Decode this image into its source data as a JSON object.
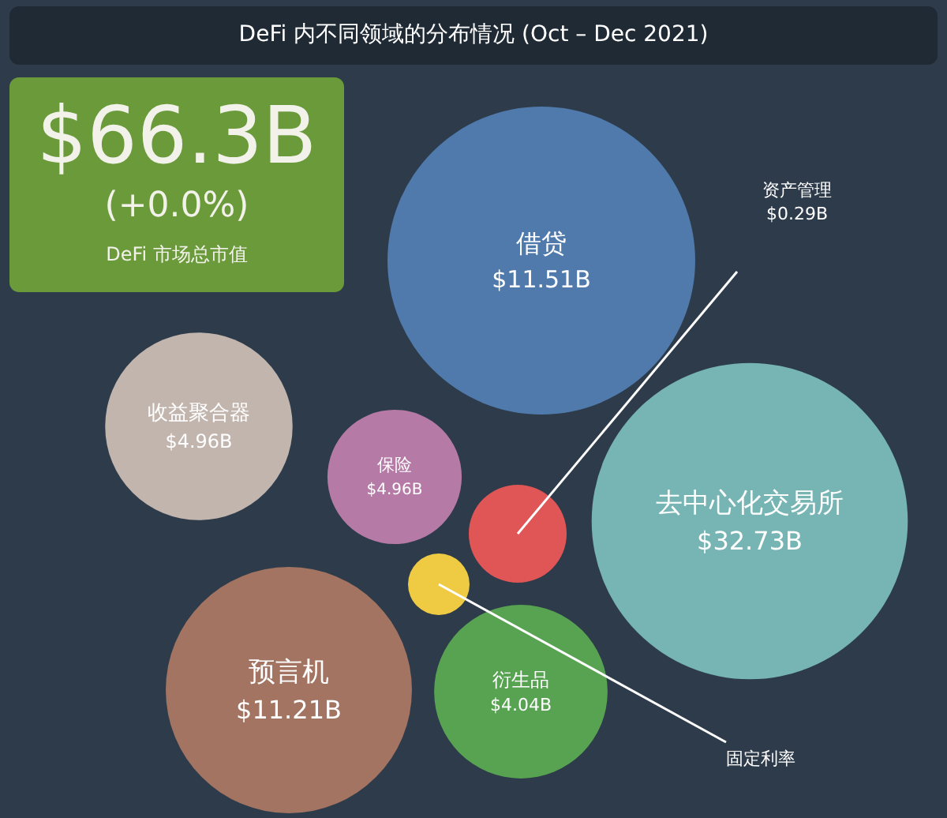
{
  "chart_data": {
    "type": "other",
    "title": "DeFi 内不同领域的分布情况 (Oct – Dec 2021)",
    "categories": [
      "借贷",
      "去中心化交易所",
      "收益聚合器",
      "保险",
      "资产管理",
      "固定利率",
      "预言机",
      "衍生品"
    ],
    "values": [
      11.51,
      32.73,
      4.96,
      4.96,
      0.29,
      null,
      11.21,
      4.04
    ],
    "value_labels": [
      "$11.51B",
      "$32.73B",
      "$4.96B",
      "$4.96B",
      "$0.29B",
      null,
      "$11.21B",
      "$4.04B"
    ],
    "colors": [
      "#4f7aab",
      "#76b5b3",
      "#c2b5ae",
      "#b57aa6",
      "#e05556",
      "#eecb42",
      "#a27461",
      "#58a352"
    ],
    "annotations": [
      "$66.3B",
      "(+0.0%)",
      "DeFi 市场总市值"
    ]
  }
}
